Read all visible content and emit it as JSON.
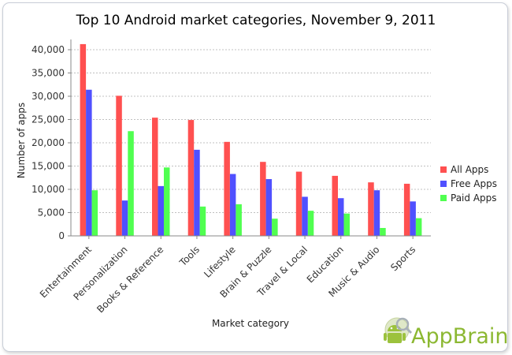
{
  "chart_data": {
    "type": "bar",
    "title": "Top 10 Android market categories, November 9, 2011",
    "xlabel": "Market category",
    "ylabel": "Number of apps",
    "ylim": [
      0,
      40000
    ],
    "yticks": [
      "0",
      "5,000",
      "10,000",
      "15,000",
      "20,000",
      "25,000",
      "30,000",
      "35,000",
      "40,000"
    ],
    "ytick_values": [
      0,
      5000,
      10000,
      15000,
      20000,
      25000,
      30000,
      35000,
      40000
    ],
    "grid": true,
    "legend_position": "right",
    "categories": [
      "Entertainment",
      "Personalization",
      "Books & Reference",
      "Tools",
      "Lifestyle",
      "Brain & Puzzle",
      "Travel & Local",
      "Education",
      "Music & Audio",
      "Sports"
    ],
    "series": [
      {
        "name": "All Apps",
        "color": "#ff5050",
        "values": [
          41200,
          30100,
          25400,
          24900,
          20200,
          15900,
          13800,
          12900,
          11500,
          11200
        ]
      },
      {
        "name": "Free Apps",
        "color": "#5050ff",
        "values": [
          31400,
          7600,
          10700,
          18500,
          13300,
          12200,
          8400,
          8100,
          9800,
          7400
        ]
      },
      {
        "name": "Paid Apps",
        "color": "#50ff50",
        "values": [
          9800,
          22500,
          14700,
          6300,
          6800,
          3700,
          5400,
          4800,
          1700,
          3800
        ]
      }
    ]
  },
  "branding": {
    "logo_text": "AppBrain",
    "logo_icon": "android-robot-icon"
  }
}
